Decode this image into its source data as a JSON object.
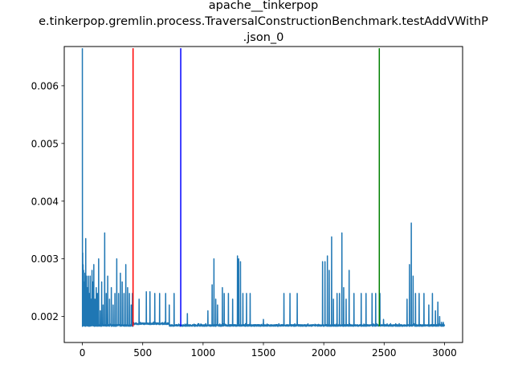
{
  "chart_data": {
    "type": "line",
    "title_lines": [
      "apache__tinkerpop",
      "e.tinkerpop.gremlin.process.TraversalConstructionBenchmark.testAddVWithP",
      ".json_0"
    ],
    "xlabel": "",
    "ylabel": "",
    "xlim": [
      -150,
      3150
    ],
    "ylim": [
      0.00155,
      0.00668
    ],
    "x_ticks": [
      0,
      500,
      1000,
      1500,
      2000,
      2500,
      3000
    ],
    "x_tick_labels": [
      "0",
      "500",
      "1000",
      "1500",
      "2000",
      "2500",
      "3000"
    ],
    "y_ticks": [
      0.002,
      0.003,
      0.004,
      0.005,
      0.006
    ],
    "y_tick_labels": [
      "0.002",
      "0.003",
      "0.004",
      "0.005",
      "0.006"
    ],
    "grid": false,
    "legend": "none",
    "series": [
      {
        "color": "#1f77b4",
        "baseline": 0.00183,
        "n_points": 3001,
        "segment_baselines": [
          {
            "x_start": 0,
            "x_end": 420,
            "value": 0.00183
          },
          {
            "x_start": 420,
            "x_end": 720,
            "value": 0.00186
          },
          {
            "x_start": 720,
            "x_end": 3001,
            "value": 0.00183
          }
        ],
        "spikes": [
          {
            "x": 0,
            "y": 0.00665
          },
          {
            "x": 3,
            "y": 0.0031
          },
          {
            "x": 6,
            "y": 0.0029
          },
          {
            "x": 10,
            "y": 0.0028
          },
          {
            "x": 15,
            "y": 0.0026
          },
          {
            "x": 22,
            "y": 0.00275
          },
          {
            "x": 28,
            "y": 0.00335
          },
          {
            "x": 35,
            "y": 0.0027
          },
          {
            "x": 42,
            "y": 0.0025
          },
          {
            "x": 50,
            "y": 0.0027
          },
          {
            "x": 58,
            "y": 0.0024
          },
          {
            "x": 65,
            "y": 0.0027
          },
          {
            "x": 72,
            "y": 0.0023
          },
          {
            "x": 80,
            "y": 0.0028
          },
          {
            "x": 88,
            "y": 0.0026
          },
          {
            "x": 95,
            "y": 0.0029
          },
          {
            "x": 105,
            "y": 0.0023
          },
          {
            "x": 115,
            "y": 0.0025
          },
          {
            "x": 125,
            "y": 0.0024
          },
          {
            "x": 135,
            "y": 0.003
          },
          {
            "x": 148,
            "y": 0.0021
          },
          {
            "x": 160,
            "y": 0.0026
          },
          {
            "x": 172,
            "y": 0.0022
          },
          {
            "x": 185,
            "y": 0.00345
          },
          {
            "x": 198,
            "y": 0.0024
          },
          {
            "x": 210,
            "y": 0.0027
          },
          {
            "x": 225,
            "y": 0.0023
          },
          {
            "x": 240,
            "y": 0.0025
          },
          {
            "x": 255,
            "y": 0.0022
          },
          {
            "x": 270,
            "y": 0.0024
          },
          {
            "x": 285,
            "y": 0.003
          },
          {
            "x": 300,
            "y": 0.0024
          },
          {
            "x": 315,
            "y": 0.00275
          },
          {
            "x": 330,
            "y": 0.0026
          },
          {
            "x": 345,
            "y": 0.0024
          },
          {
            "x": 360,
            "y": 0.0029
          },
          {
            "x": 375,
            "y": 0.0025
          },
          {
            "x": 390,
            "y": 0.0024
          },
          {
            "x": 405,
            "y": 0.0022
          },
          {
            "x": 415,
            "y": 0.0024
          },
          {
            "x": 470,
            "y": 0.0023
          },
          {
            "x": 530,
            "y": 0.00243
          },
          {
            "x": 560,
            "y": 0.00243
          },
          {
            "x": 600,
            "y": 0.0024
          },
          {
            "x": 640,
            "y": 0.0024
          },
          {
            "x": 690,
            "y": 0.0024
          },
          {
            "x": 720,
            "y": 0.0022
          },
          {
            "x": 760,
            "y": 0.0024
          },
          {
            "x": 870,
            "y": 0.00205
          },
          {
            "x": 1040,
            "y": 0.0021
          },
          {
            "x": 1075,
            "y": 0.00255
          },
          {
            "x": 1090,
            "y": 0.003
          },
          {
            "x": 1105,
            "y": 0.0023
          },
          {
            "x": 1120,
            "y": 0.0022
          },
          {
            "x": 1160,
            "y": 0.0025
          },
          {
            "x": 1175,
            "y": 0.0024
          },
          {
            "x": 1210,
            "y": 0.0024
          },
          {
            "x": 1245,
            "y": 0.0023
          },
          {
            "x": 1285,
            "y": 0.00305
          },
          {
            "x": 1295,
            "y": 0.003
          },
          {
            "x": 1310,
            "y": 0.00295
          },
          {
            "x": 1330,
            "y": 0.0024
          },
          {
            "x": 1360,
            "y": 0.0024
          },
          {
            "x": 1390,
            "y": 0.0024
          },
          {
            "x": 1500,
            "y": 0.00195
          },
          {
            "x": 1670,
            "y": 0.0024
          },
          {
            "x": 1720,
            "y": 0.0024
          },
          {
            "x": 1780,
            "y": 0.0024
          },
          {
            "x": 1990,
            "y": 0.00295
          },
          {
            "x": 2010,
            "y": 0.00295
          },
          {
            "x": 2030,
            "y": 0.00305
          },
          {
            "x": 2045,
            "y": 0.0028
          },
          {
            "x": 2065,
            "y": 0.00338
          },
          {
            "x": 2080,
            "y": 0.0023
          },
          {
            "x": 2110,
            "y": 0.0024
          },
          {
            "x": 2130,
            "y": 0.0024
          },
          {
            "x": 2150,
            "y": 0.00345
          },
          {
            "x": 2165,
            "y": 0.0025
          },
          {
            "x": 2185,
            "y": 0.0023
          },
          {
            "x": 2210,
            "y": 0.0028
          },
          {
            "x": 2250,
            "y": 0.0024
          },
          {
            "x": 2310,
            "y": 0.0024
          },
          {
            "x": 2350,
            "y": 0.0024
          },
          {
            "x": 2400,
            "y": 0.0024
          },
          {
            "x": 2430,
            "y": 0.0024
          },
          {
            "x": 2465,
            "y": 0.0024
          },
          {
            "x": 2495,
            "y": 0.00195
          },
          {
            "x": 2690,
            "y": 0.0023
          },
          {
            "x": 2710,
            "y": 0.0029
          },
          {
            "x": 2725,
            "y": 0.00362
          },
          {
            "x": 2740,
            "y": 0.0027
          },
          {
            "x": 2760,
            "y": 0.0024
          },
          {
            "x": 2790,
            "y": 0.0024
          },
          {
            "x": 2830,
            "y": 0.0024
          },
          {
            "x": 2870,
            "y": 0.0022
          },
          {
            "x": 2900,
            "y": 0.0024
          },
          {
            "x": 2925,
            "y": 0.0021
          },
          {
            "x": 2945,
            "y": 0.00225
          },
          {
            "x": 2960,
            "y": 0.002
          },
          {
            "x": 2975,
            "y": 0.0019
          },
          {
            "x": 2990,
            "y": 0.0019
          }
        ]
      }
    ],
    "vertical_lines": [
      {
        "x": 420,
        "color": "#ff0000",
        "y_top": 0.00665
      },
      {
        "x": 815,
        "color": "#0000ff",
        "y_top": 0.00665
      },
      {
        "x": 2460,
        "color": "#008000",
        "y_top": 0.00665
      }
    ]
  }
}
